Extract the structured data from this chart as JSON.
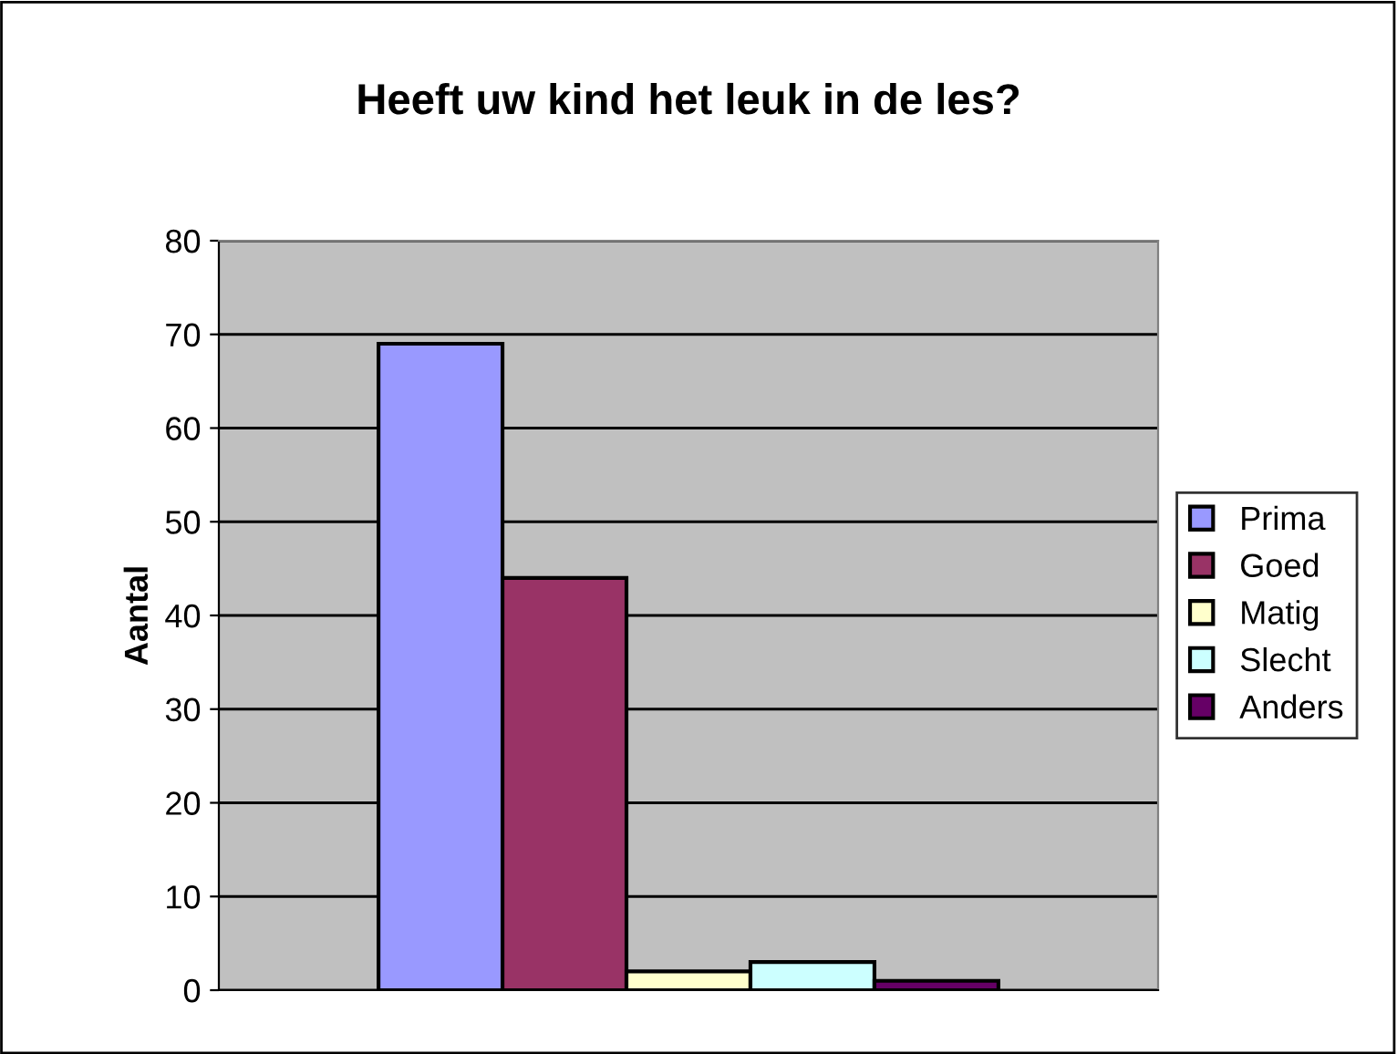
{
  "chart_data": {
    "type": "bar",
    "title": "Heeft uw kind het leuk in de les?",
    "ylabel": "Aantal",
    "categories": [
      null
    ],
    "series": [
      {
        "name": "Prima",
        "color": "#9999ff",
        "values": [
          69
        ]
      },
      {
        "name": "Goed",
        "color": "#993366",
        "values": [
          44
        ]
      },
      {
        "name": "Matig",
        "color": "#ffffcc",
        "values": [
          2
        ]
      },
      {
        "name": "Slecht",
        "color": "#ccffff",
        "values": [
          3
        ]
      },
      {
        "name": "Anders",
        "color": "#660066",
        "values": [
          1
        ]
      }
    ],
    "ylim": [
      0,
      80
    ],
    "yticks": [
      0,
      10,
      20,
      30,
      40,
      50,
      60,
      70,
      80
    ],
    "grid": "y",
    "legend": "right"
  }
}
